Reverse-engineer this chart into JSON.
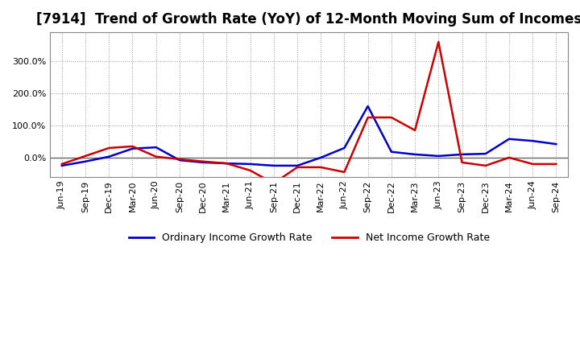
{
  "title": "[7914]  Trend of Growth Rate (YoY) of 12-Month Moving Sum of Incomes",
  "legend_labels": [
    "Ordinary Income Growth Rate",
    "Net Income Growth Rate"
  ],
  "legend_colors": [
    "#0000cc",
    "#cc0000"
  ],
  "x_labels": [
    "Jun-19",
    "Sep-19",
    "Dec-19",
    "Mar-20",
    "Jun-20",
    "Sep-20",
    "Dec-20",
    "Mar-21",
    "Jun-21",
    "Sep-21",
    "Dec-21",
    "Mar-22",
    "Jun-22",
    "Sep-22",
    "Dec-22",
    "Mar-23",
    "Jun-23",
    "Sep-23",
    "Dec-23",
    "Mar-24",
    "Jun-24",
    "Sep-24"
  ],
  "ordinary_income": [
    -25,
    -12,
    3,
    28,
    32,
    -8,
    -15,
    -18,
    -20,
    -25,
    -25,
    0,
    30,
    160,
    18,
    10,
    5,
    10,
    12,
    58,
    52,
    42
  ],
  "net_income": [
    -20,
    5,
    30,
    35,
    3,
    -5,
    -12,
    -18,
    -40,
    -80,
    -30,
    -30,
    -45,
    125,
    125,
    85,
    360,
    -15,
    -25,
    0,
    -20,
    -20
  ],
  "ylim": [
    -60,
    390
  ],
  "yticks": [
    0,
    100,
    200,
    300
  ],
  "background_color": "#ffffff",
  "grid_color": "#999999",
  "zero_line_color": "#666666",
  "title_fontsize": 12,
  "tick_fontsize": 8,
  "legend_fontsize": 9
}
